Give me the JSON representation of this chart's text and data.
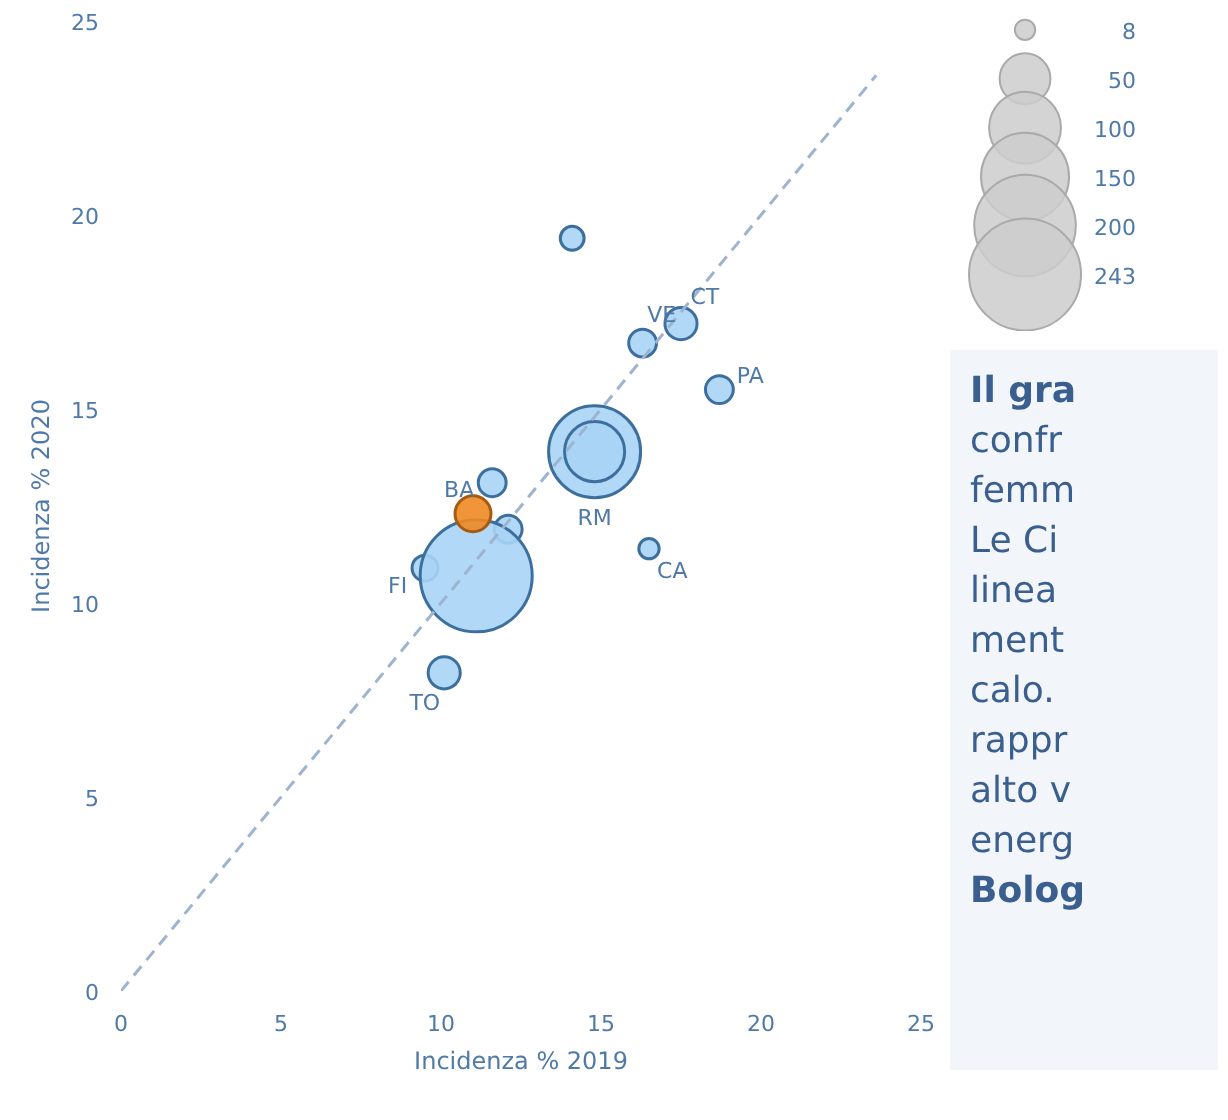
{
  "chart_data": {
    "type": "bubble",
    "xlabel": "Incidenza % 2019",
    "ylabel": "Incidenza % 2020",
    "xlim": [
      0,
      25
    ],
    "ylim": [
      0,
      25
    ],
    "xticks": [
      0,
      5,
      10,
      15,
      20,
      25
    ],
    "yticks": [
      0,
      5,
      10,
      15,
      20,
      25
    ],
    "grid": false,
    "size_legend": [
      8,
      50,
      100,
      150,
      200,
      243
    ],
    "series": [
      {
        "color": "#a9d4f5",
        "x": [
          14.1,
          16.3,
          17.5,
          18.7,
          14.8,
          14.8,
          11.6,
          12.1,
          9.5,
          11.1,
          10.1,
          16.5
        ],
        "values": [
          19.4,
          16.7,
          17.2,
          15.5,
          13.9,
          13.9,
          13.1,
          11.9,
          10.9,
          10.7,
          8.2,
          11.4
        ],
        "sizes": [
          11,
          15,
          20,
          15,
          164,
          70,
          15,
          15,
          13,
          243,
          20,
          8
        ]
      },
      {
        "color": "#f08a24",
        "x": [
          11.0
        ],
        "values": [
          12.3
        ],
        "sizes": [
          25
        ]
      },
      {
        "type": "line",
        "color": "#9db3cf",
        "line_style": "dashed",
        "x": [
          0,
          23.6
        ],
        "values": [
          0,
          23.6
        ]
      }
    ],
    "annotations": [
      {
        "text": "VE",
        "x": 16.3,
        "y": 16.7
      },
      {
        "text": "CT",
        "x": 17.5,
        "y": 17.2
      },
      {
        "text": "PA",
        "x": 18.7,
        "y": 15.5
      },
      {
        "text": "BA",
        "x": 11.6,
        "y": 13.1
      },
      {
        "text": "RM",
        "x": 14.8,
        "y": 13.9
      },
      {
        "text": "CA",
        "x": 16.5,
        "y": 11.4
      },
      {
        "text": "FI",
        "x": 9.5,
        "y": 10.9
      },
      {
        "text": "TO",
        "x": 10.1,
        "y": 8.2
      },
      "Il gra\nconfr\nfemm\nLe Ci\nlinea\nment\ncalo.\nrappr\nalto v\nenerg\nBolog"
    ]
  }
}
